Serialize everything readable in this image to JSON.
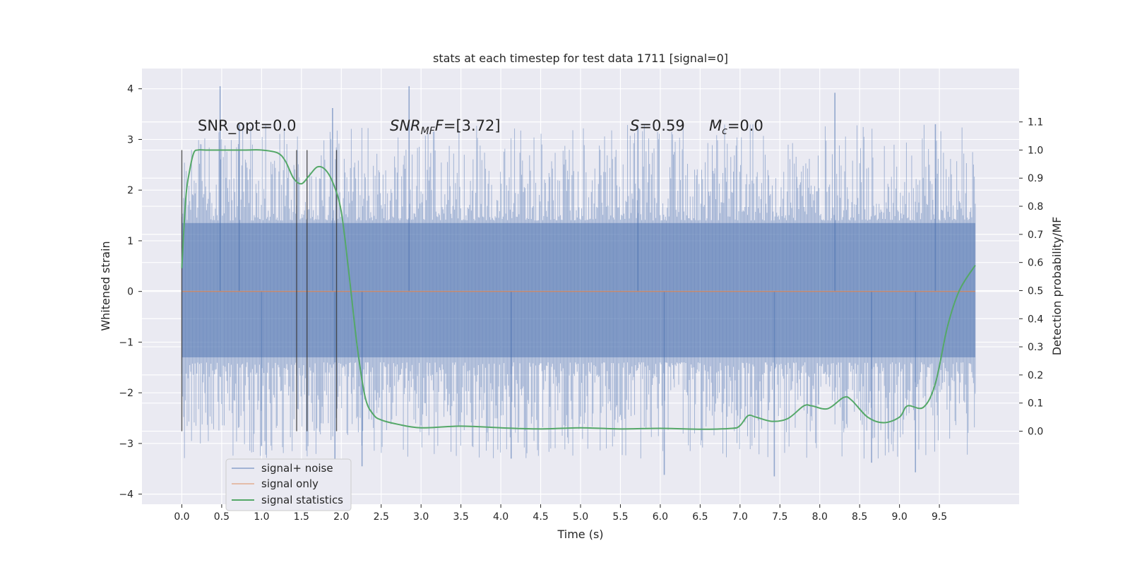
{
  "chart_data": {
    "type": "line",
    "title": "stats at each timestep for test data 1711 [signal=0]",
    "xlabel": "Time (s)",
    "ylabel_left": "Whitened strain",
    "ylabel_right": "Detection probability/MF",
    "xlim": [
      -0.5,
      10.5
    ],
    "ylim_left": [
      -4.2,
      4.4
    ],
    "ylim_right": [
      -0.26,
      1.29
    ],
    "x_ticks": [
      "0.0",
      "0.5",
      "1.0",
      "1.5",
      "2.0",
      "2.5",
      "3.0",
      "3.5",
      "4.0",
      "4.5",
      "5.0",
      "5.5",
      "6.0",
      "6.5",
      "7.0",
      "7.5",
      "8.0",
      "8.5",
      "9.0",
      "9.5"
    ],
    "y_ticks_left": [
      "4",
      "3",
      "2",
      "1",
      "0",
      "−1",
      "−2",
      "−3",
      "−4"
    ],
    "y_ticks_right": [
      "1.1",
      "1.0",
      "0.9",
      "0.8",
      "0.7",
      "0.6",
      "0.5",
      "0.4",
      "0.3",
      "0.2",
      "0.1",
      "0.0"
    ],
    "grid": true,
    "legend_position": "lower-left",
    "annotations": {
      "snr_opt": "SNR_opt=0.0",
      "snr_mf_main": "SNR",
      "snr_mf_sub": "MF",
      "snr_mf_value": "=[3.72]",
      "s_label": "S",
      "s_value": "=0.59",
      "mc_main": "M",
      "mc_sub": "c",
      "mc_value": "=0.0"
    },
    "vertical_markers": [
      0.0,
      1.44,
      1.57,
      1.94
    ],
    "series": [
      {
        "name": "signal+ noise",
        "color": "#4c72b0",
        "kind": "whitened strain noise band",
        "x_range": [
          0.0,
          9.95
        ],
        "core_band": [
          -1.3,
          1.35
        ],
        "spike_peaks": [
          {
            "x": 0.48,
            "y": 4.05
          },
          {
            "x": 1.89,
            "y": 3.62
          },
          {
            "x": 2.85,
            "y": 4.05
          },
          {
            "x": 8.19,
            "y": 3.92
          },
          {
            "x": 9.45,
            "y": 3.3
          },
          {
            "x": 0.72,
            "y": 3.3
          },
          {
            "x": 5.72,
            "y": 3.25
          },
          {
            "x": 2.26,
            "y": -3.45
          },
          {
            "x": 6.05,
            "y": -3.62
          },
          {
            "x": 7.43,
            "y": -3.65
          },
          {
            "x": 9.2,
            "y": -3.57
          },
          {
            "x": 4.13,
            "y": -3.3
          },
          {
            "x": 1.92,
            "y": -3.72
          },
          {
            "x": 1.0,
            "y": -3.05
          },
          {
            "x": 8.65,
            "y": -3.38
          }
        ]
      },
      {
        "name": "signal only",
        "color": "#dd8452",
        "x": [
          0.0,
          9.95
        ],
        "y": [
          0.0,
          0.0
        ]
      },
      {
        "name": "signal statistics",
        "color": "#55a868",
        "axis": "right",
        "x": [
          0.0,
          0.05,
          0.1,
          0.15,
          0.2,
          0.3,
          0.5,
          0.8,
          1.0,
          1.2,
          1.3,
          1.4,
          1.5,
          1.6,
          1.7,
          1.8,
          1.9,
          2.0,
          2.1,
          2.2,
          2.3,
          2.4,
          2.5,
          2.7,
          3.0,
          3.5,
          4.0,
          4.5,
          5.0,
          5.5,
          6.0,
          6.5,
          6.9,
          7.0,
          7.1,
          7.2,
          7.4,
          7.6,
          7.8,
          7.9,
          8.1,
          8.3,
          8.4,
          8.6,
          8.8,
          9.0,
          9.1,
          9.3,
          9.45,
          9.6,
          9.75,
          9.95
        ],
        "y": [
          0.58,
          0.83,
          0.93,
          0.99,
          1.0,
          1.0,
          1.0,
          1.0,
          1.0,
          0.99,
          0.96,
          0.9,
          0.88,
          0.91,
          0.94,
          0.93,
          0.88,
          0.78,
          0.55,
          0.3,
          0.12,
          0.06,
          0.04,
          0.025,
          0.012,
          0.018,
          0.012,
          0.008,
          0.012,
          0.008,
          0.01,
          0.007,
          0.01,
          0.02,
          0.055,
          0.05,
          0.035,
          0.045,
          0.09,
          0.09,
          0.08,
          0.12,
          0.11,
          0.05,
          0.03,
          0.05,
          0.09,
          0.085,
          0.17,
          0.37,
          0.5,
          0.59
        ]
      }
    ]
  }
}
